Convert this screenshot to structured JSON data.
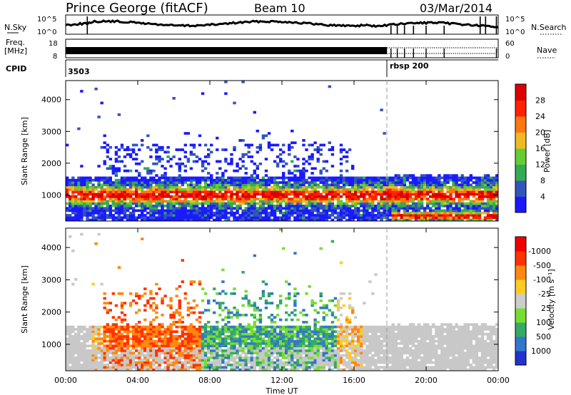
{
  "header": {
    "station": "Prince George (fitACF)",
    "beam": "Beam 10",
    "date": "03/Mar/2014"
  },
  "meta_panels": {
    "nsky_label": "N.Sky",
    "nsky_ticks": [
      "10^5",
      "10^0"
    ],
    "nsearch_label": "N.Search",
    "nsearch_ticks": [
      "10^5",
      "10^0"
    ],
    "freq_label": "Freq.",
    "freq_unit": "[MHz]",
    "freq_ticks": [
      "18",
      "8"
    ],
    "nave_label": "Nave",
    "nave_ticks": [
      "60",
      "0"
    ],
    "cpid_label": "CPID",
    "cpid_segments": [
      {
        "label": "3503",
        "start_h": 0,
        "end_h": 18
      },
      {
        "label": "rbsp 200",
        "start_h": 18,
        "end_h": 24
      }
    ]
  },
  "chart_data": [
    {
      "type": "heatmap",
      "name": "power",
      "xlabel": "",
      "ylabel": "Slant Range [km]",
      "xlim": [
        0,
        24
      ],
      "ylim": [
        180,
        4600
      ],
      "yticks": [
        1000,
        2000,
        3000,
        4000
      ],
      "colorbar": {
        "label": "Power [dB]",
        "ticks": [
          "4",
          "8",
          "12",
          "16",
          "20",
          "24",
          "28"
        ],
        "colors": [
          "#1a1aff",
          "#3355bb",
          "#33aa55",
          "#66cc33",
          "#eebb22",
          "#ff7711",
          "#ff2200",
          "#dd0000"
        ]
      }
    },
    {
      "type": "heatmap",
      "name": "velocity",
      "xlabel": "Time UT",
      "ylabel": "Slant Range [km]",
      "xlim": [
        0,
        24
      ],
      "ylim": [
        180,
        4600
      ],
      "yticks": [
        1000,
        2000,
        3000,
        4000
      ],
      "xticks": [
        "00:00",
        "04:00",
        "08:00",
        "12:00",
        "16:00",
        "20:00",
        "00:00"
      ],
      "colorbar": {
        "label": "Velocity [m s⁻¹]",
        "ticks": [
          "1000",
          "500",
          "100",
          "25",
          "-25",
          "-100",
          "-500",
          "-1000"
        ],
        "colors": [
          "#2233cc",
          "#3377cc",
          "#33aa66",
          "#77dd33",
          "#cccccc",
          "#ffcc22",
          "#ff8811",
          "#ff3300",
          "#ee0000"
        ]
      }
    }
  ],
  "colors": {
    "ground_scatter": "#bbbbbb",
    "low_power": "#2233cc",
    "mid_power": "#ff9900",
    "high_power": "#ee0000"
  }
}
